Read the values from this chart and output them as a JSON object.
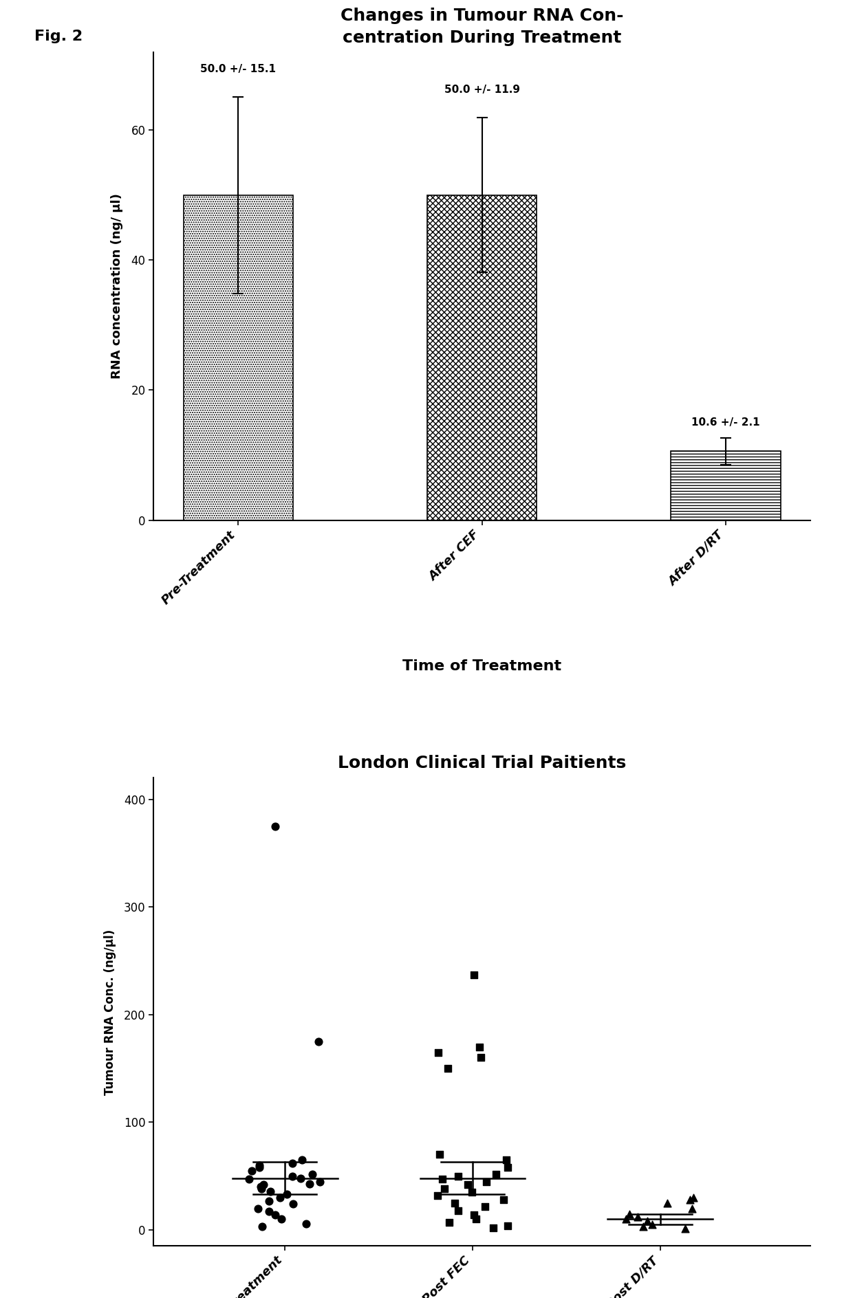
{
  "fig_label": "Fig. 2",
  "bar_chart": {
    "title": "Changes in Tumour RNA Con-\ncentration During Treatment",
    "ylabel": "RNA concentration (ng/ μl)",
    "xlabel": "Time of Treatment",
    "categories": [
      "Pre-Treatment",
      "After CEF",
      "After D/RT"
    ],
    "values": [
      50.0,
      50.0,
      10.6
    ],
    "errors": [
      15.1,
      11.9,
      2.1
    ],
    "annotations": [
      "50.0 +/- 15.1",
      "50.0 +/- 11.9",
      "10.6 +/- 2.1"
    ],
    "ylim": [
      0,
      72
    ],
    "yticks": [
      0,
      20,
      40,
      60
    ],
    "hatch_patterns": [
      ".....",
      "xxxx",
      "----"
    ]
  },
  "scatter_chart": {
    "title": "London Clinical Trial Paitients",
    "ylabel": "Tumour RNA Conc. (ng/μl)",
    "ylim": [
      -15,
      420
    ],
    "yticks": [
      0,
      100,
      200,
      300,
      400
    ],
    "categories": [
      "Pre treatment",
      "Post FEC",
      "Post D/RT"
    ],
    "pre_treatment": [
      375,
      175,
      65,
      62,
      60,
      58,
      55,
      52,
      50,
      48,
      47,
      45,
      43,
      42,
      40,
      38,
      36,
      33,
      30,
      27,
      24,
      20,
      17,
      14,
      10,
      6,
      3
    ],
    "post_fec": [
      237,
      170,
      165,
      160,
      150,
      70,
      65,
      58,
      52,
      50,
      47,
      45,
      42,
      38,
      35,
      32,
      28,
      25,
      22,
      18,
      14,
      10,
      7,
      4,
      2
    ],
    "post_dirt": [
      30,
      28,
      25,
      20,
      15,
      12,
      10,
      8,
      5,
      3,
      1
    ],
    "mean_pre": 48,
    "mean_post_fec": 48,
    "mean_post_dirt": 10,
    "err_pre": 15,
    "err_post_fec": 15,
    "err_post_dirt": 5
  }
}
